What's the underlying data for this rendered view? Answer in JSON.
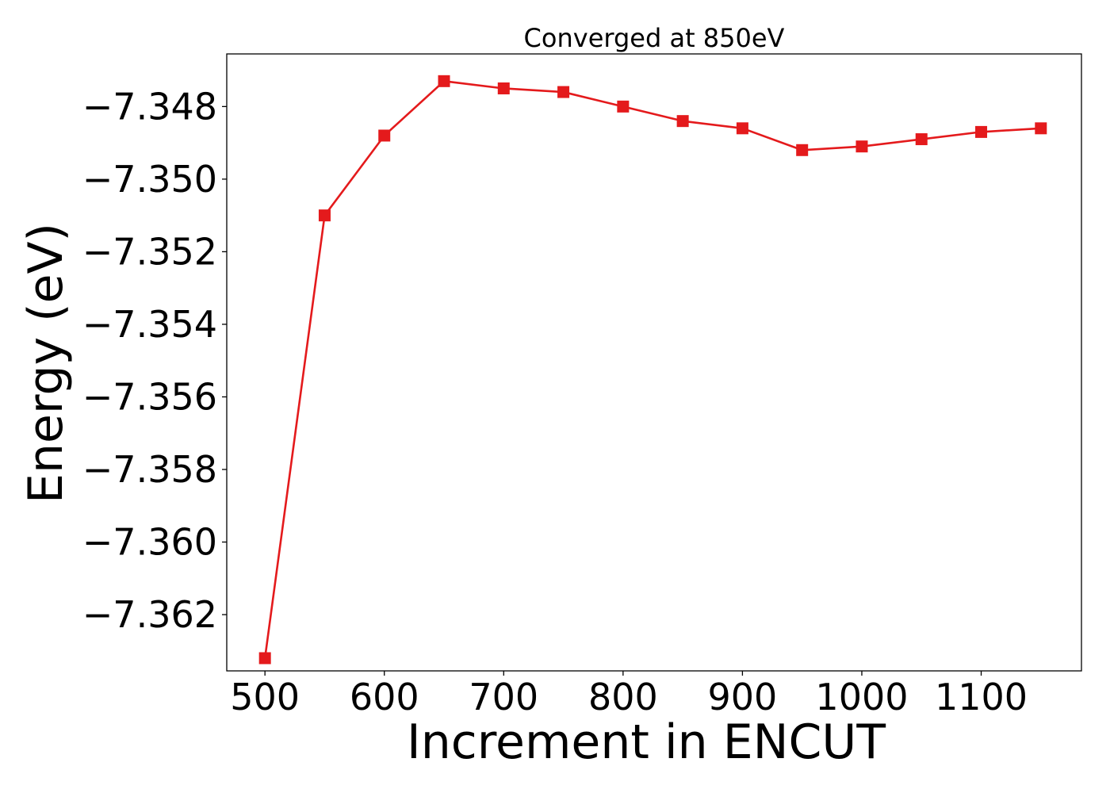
{
  "chart_data": {
    "type": "line",
    "title": "Converged at 850eV",
    "xlabel": "Increment in ENCUT",
    "ylabel": "Energy (eV)",
    "x": [
      500,
      550,
      600,
      650,
      700,
      750,
      800,
      850,
      900,
      950,
      1000,
      1050,
      1100,
      1150
    ],
    "series": [
      {
        "values": [
          -7.3632,
          -7.351,
          -7.3488,
          -7.3473,
          -7.3475,
          -7.3476,
          -7.348,
          -7.3484,
          -7.3486,
          -7.3492,
          -7.3491,
          -7.3489,
          -7.3487,
          -7.3486
        ],
        "color": "#e41a1c",
        "marker": "square"
      }
    ],
    "xlim": [
      468,
      1184
    ],
    "ylim": [
      -7.36355,
      -7.34655
    ],
    "xticks": [
      500,
      600,
      700,
      800,
      900,
      1000,
      1100
    ],
    "xtick_labels": [
      "500",
      "600",
      "700",
      "800",
      "900",
      "1000",
      "1100"
    ],
    "yticks": [
      -7.348,
      -7.35,
      -7.352,
      -7.354,
      -7.356,
      -7.358,
      -7.36,
      -7.362
    ],
    "ytick_labels": [
      "−7.348",
      "−7.350",
      "−7.352",
      "−7.354",
      "−7.356",
      "−7.358",
      "−7.360",
      "−7.362"
    ],
    "grid": false,
    "legend": "none"
  }
}
